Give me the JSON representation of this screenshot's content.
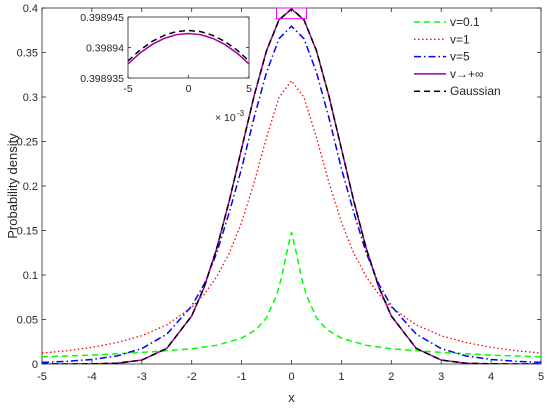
{
  "chart_data": {
    "type": "line",
    "title": "",
    "xlabel": "x",
    "ylabel": "Probability density",
    "xlim": [
      -5,
      5
    ],
    "ylim": [
      0,
      0.4
    ],
    "xticks": [
      -5,
      -4,
      -3,
      -2,
      -1,
      0,
      1,
      2,
      3,
      4,
      5
    ],
    "xtick_labels": [
      "-5",
      "-4",
      "-3",
      "-2",
      "-1",
      "0",
      "1",
      "2",
      "3",
      "4",
      "5"
    ],
    "yticks": [
      0,
      0.05,
      0.1,
      0.15,
      0.2,
      0.25,
      0.3,
      0.35,
      0.4
    ],
    "ytick_labels": [
      "0",
      "0.05",
      "0.1",
      "0.15",
      "0.2",
      "0.25",
      "0.3",
      "0.35",
      "0.4"
    ],
    "grid": false,
    "legend_position": "top-right",
    "series": [
      {
        "name": "v=0.1",
        "color": "#00ff00",
        "style": "dashed",
        "x": [
          -5,
          -4,
          -3,
          -2,
          -1.5,
          -1,
          -0.7,
          -0.5,
          -0.3,
          -0.2,
          -0.1,
          0,
          0.1,
          0.2,
          0.3,
          0.5,
          0.7,
          1,
          1.5,
          2,
          3,
          4,
          5
        ],
        "y": [
          0.008,
          0.01,
          0.013,
          0.017,
          0.021,
          0.029,
          0.039,
          0.052,
          0.077,
          0.097,
          0.124,
          0.148,
          0.124,
          0.097,
          0.077,
          0.052,
          0.039,
          0.029,
          0.021,
          0.017,
          0.013,
          0.01,
          0.008
        ]
      },
      {
        "name": "v=1",
        "color": "#ff0000",
        "style": "dotted",
        "x": [
          -5,
          -4.5,
          -4,
          -3.5,
          -3,
          -2.5,
          -2,
          -1.75,
          -1.5,
          -1.25,
          -1,
          -0.75,
          -0.5,
          -0.25,
          0,
          0.25,
          0.5,
          0.75,
          1,
          1.25,
          1.5,
          1.75,
          2,
          2.5,
          3,
          3.5,
          4,
          4.5,
          5
        ],
        "y": [
          0.0123,
          0.0149,
          0.0187,
          0.0241,
          0.0318,
          0.0439,
          0.0637,
          0.0782,
          0.0979,
          0.1241,
          0.1592,
          0.2037,
          0.2546,
          0.2996,
          0.3183,
          0.2996,
          0.2546,
          0.2037,
          0.1592,
          0.1241,
          0.0979,
          0.0782,
          0.0637,
          0.0439,
          0.0318,
          0.0241,
          0.0187,
          0.0149,
          0.0123
        ]
      },
      {
        "name": "v=5",
        "color": "#0000ff",
        "style": "dashdot",
        "x": [
          -5,
          -4.5,
          -4,
          -3.5,
          -3,
          -2.5,
          -2,
          -1.75,
          -1.5,
          -1.25,
          -1,
          -0.75,
          -0.5,
          -0.25,
          0,
          0.25,
          0.5,
          0.75,
          1,
          1.25,
          1.5,
          1.75,
          2,
          2.5,
          3,
          3.5,
          4,
          4.5,
          5
        ],
        "y": [
          0.0018,
          0.003,
          0.0051,
          0.009,
          0.0173,
          0.0335,
          0.0651,
          0.0897,
          0.1245,
          0.1699,
          0.2197,
          0.2767,
          0.3279,
          0.3655,
          0.3796,
          0.3655,
          0.3279,
          0.2767,
          0.2197,
          0.1699,
          0.1245,
          0.0897,
          0.0651,
          0.0335,
          0.0173,
          0.009,
          0.0051,
          0.003,
          0.0018
        ]
      },
      {
        "name": "v→+∞",
        "color": "#a000a0",
        "style": "solid",
        "x": [
          -5,
          -4.5,
          -4,
          -3.5,
          -3,
          -2.5,
          -2,
          -1.75,
          -1.5,
          -1.25,
          -1,
          -0.75,
          -0.5,
          -0.25,
          0,
          0.25,
          0.5,
          0.75,
          1,
          1.25,
          1.5,
          1.75,
          2,
          2.5,
          3,
          3.5,
          4,
          4.5,
          5
        ],
        "y": [
          1.5e-06,
          1.6e-05,
          0.000134,
          0.000873,
          0.00443,
          0.0175,
          0.054,
          0.0863,
          0.1295,
          0.1826,
          0.242,
          0.3011,
          0.3521,
          0.3867,
          0.3989,
          0.3867,
          0.3521,
          0.3011,
          0.242,
          0.1826,
          0.1295,
          0.0863,
          0.054,
          0.0175,
          0.00443,
          0.000873,
          0.000134,
          1.6e-05,
          1.5e-06
        ]
      },
      {
        "name": "Gaussian",
        "color": "#000000",
        "style": "dashed",
        "x": [
          -5,
          -4.5,
          -4,
          -3.5,
          -3,
          -2.5,
          -2,
          -1.75,
          -1.5,
          -1.25,
          -1,
          -0.75,
          -0.5,
          -0.25,
          0,
          0.25,
          0.5,
          0.75,
          1,
          1.25,
          1.5,
          1.75,
          2,
          2.5,
          3,
          3.5,
          4,
          4.5,
          5
        ],
        "y": [
          1.5e-06,
          1.6e-05,
          0.000134,
          0.000873,
          0.00443,
          0.0175,
          0.054,
          0.0863,
          0.1295,
          0.1826,
          0.242,
          0.3011,
          0.3521,
          0.3867,
          0.3989,
          0.3867,
          0.3521,
          0.3011,
          0.242,
          0.1826,
          0.1295,
          0.0863,
          0.054,
          0.0175,
          0.00443,
          0.000873,
          0.000134,
          1.6e-05,
          1.5e-06
        ]
      }
    ],
    "highlight_box": {
      "xlim": [
        -0.3,
        0.3
      ],
      "ylim": [
        0.388,
        0.4
      ],
      "color": "#ff00ff"
    },
    "inset": {
      "xlim": [
        -0.005,
        0.005
      ],
      "ylim": [
        0.398935,
        0.398945
      ],
      "xticks": [
        -0.005,
        0,
        0.005
      ],
      "xtick_labels": [
        "-5",
        "0",
        "5"
      ],
      "x_exponent_label": "× 10",
      "x_exponent_power": "-3",
      "yticks": [
        0.398935,
        0.39894,
        0.398945
      ],
      "ytick_labels": [
        "0.398935",
        "0.39894",
        "0.398945"
      ],
      "series": [
        {
          "name": "v→+∞",
          "color": "#a000a0",
          "style": "solid",
          "x": [
            -0.005,
            -0.004,
            -0.003,
            -0.002,
            -0.001,
            0,
            0.001,
            0.002,
            0.003,
            0.004,
            0.005
          ],
          "y": [
            0.3989373,
            0.3989391,
            0.3989405,
            0.3989415,
            0.3989421,
            0.3989423,
            0.3989421,
            0.3989415,
            0.3989405,
            0.3989391,
            0.3989373
          ]
        },
        {
          "name": "Gaussian",
          "color": "#000000",
          "style": "dashed",
          "x": [
            -0.005,
            -0.004,
            -0.003,
            -0.002,
            -0.001,
            0,
            0.001,
            0.002,
            0.003,
            0.004,
            0.005
          ],
          "y": [
            0.3989378,
            0.3989396,
            0.398941,
            0.398942,
            0.3989426,
            0.3989428,
            0.3989426,
            0.398942,
            0.398941,
            0.3989396,
            0.3989378
          ]
        }
      ]
    }
  }
}
